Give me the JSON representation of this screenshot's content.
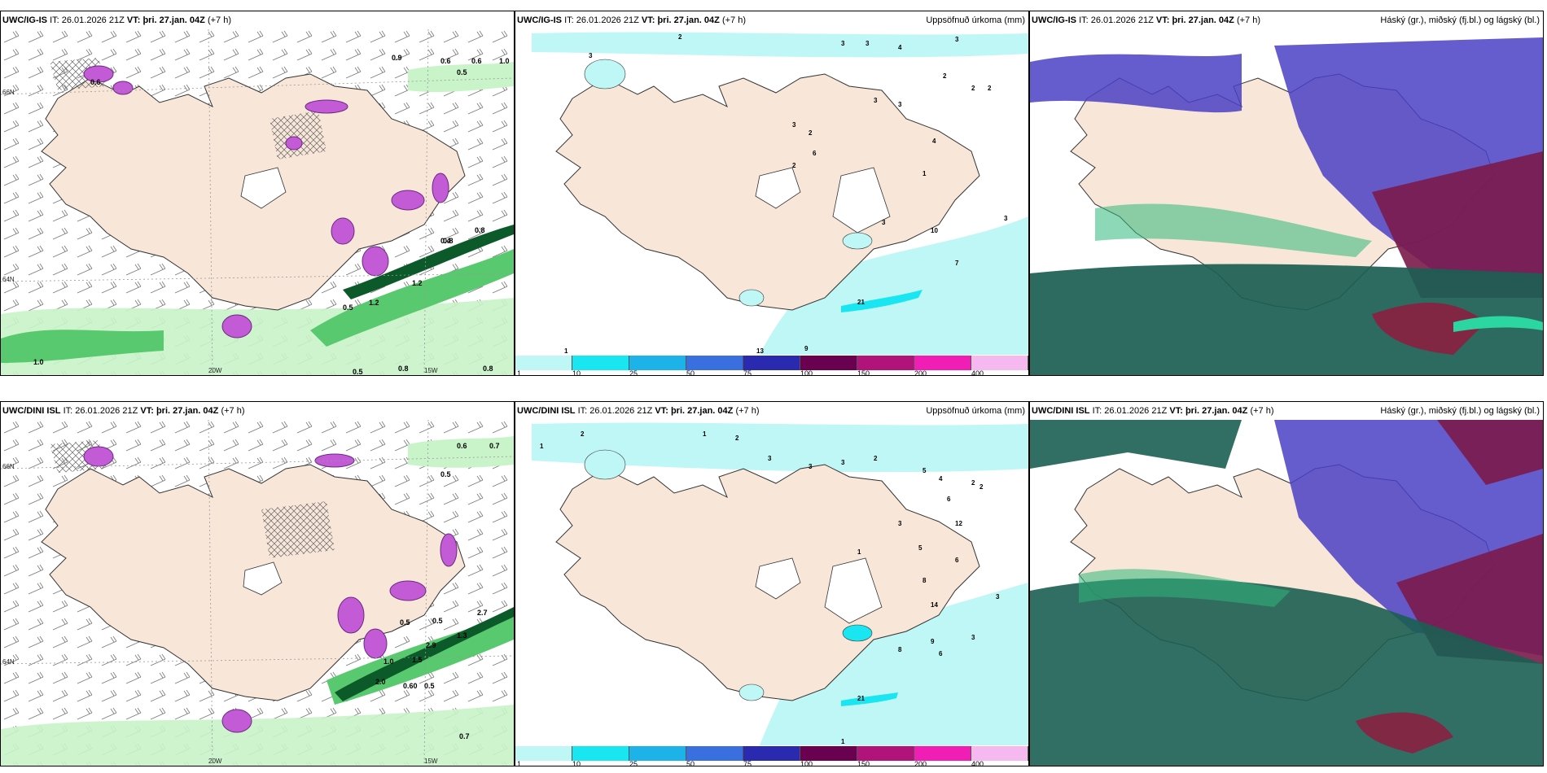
{
  "panels": {
    "p1": {
      "model": "UWC/IG-IS",
      "it_label": "IT:",
      "it": "26.01.2026 21Z",
      "vt_label": "VT: þri. 27.jan. 04Z",
      "lead": "(+7 h)",
      "right": ""
    },
    "p2": {
      "model": "UWC/IG-IS",
      "it_label": "IT:",
      "it": "26.01.2026 21Z",
      "vt_label": "VT: þri. 27.jan. 04Z",
      "lead": "(+7 h)",
      "right": "Uppsöfnuð úrkoma (mm)"
    },
    "p3": {
      "model": "UWC/IG-IS",
      "it_label": "IT:",
      "it": "26.01.2026 21Z",
      "vt_label": "VT: þri. 27.jan. 04Z",
      "lead": "(+7 h)",
      "right": "Háský (gr.), miðský (fj.bl.) og lágský (bl.)"
    },
    "p4": {
      "model": "UWC/DINI ISL",
      "it_label": "IT:",
      "it": "26.01.2026 21Z",
      "vt_label": "VT: þri. 27.jan. 04Z",
      "lead": "(+7 h)",
      "right": ""
    },
    "p5": {
      "model": "UWC/DINI ISL",
      "it_label": "IT:",
      "it": "26.01.2026 21Z",
      "vt_label": "VT: þri. 27.jan. 04Z",
      "lead": "(+7 h)",
      "right": "Uppsöfnuð úrkoma (mm)"
    },
    "p6": {
      "model": "UWC/DINI ISL",
      "it_label": "IT:",
      "it": "26.01.2026 21Z",
      "vt_label": "VT: þri. 27.jan. 04Z",
      "lead": "(+7 h)",
      "right": "Háský (gr.), miðský (fj.bl.) og lágský (bl.)"
    }
  },
  "axes": {
    "lon20": "20W",
    "lon15": "15W",
    "lat66": "66N",
    "lat64": "64N",
    "lat64b": "64N",
    "lat66r": "66N",
    "lat64r": "64N"
  },
  "colorbar": {
    "ticks": [
      "1",
      "10",
      "25",
      "50",
      "75",
      "100",
      "150",
      "200",
      "400"
    ],
    "colors": [
      "#bff6f6",
      "#19e6f0",
      "#1eb3e8",
      "#3a6fe0",
      "#2a2ab0",
      "#6a0050",
      "#b0147a",
      "#f01eb4",
      "#f5b9f0"
    ]
  },
  "legend_colors": {
    "land": "#f8e7d8",
    "precip_light": "#bff5f5",
    "snow_low": "#c9f3c9",
    "snow_mid": "#58c96e",
    "snow_dark": "#0c5a2a",
    "conv": "#c35bd6"
  },
  "panel1_values": [
    "0.9",
    "0.6",
    "0.6",
    "0.5",
    "1.0",
    "0.8",
    "0.4",
    "0.8",
    "0.5",
    "1.2",
    "1.2",
    "0.5",
    "1.0",
    "0.8",
    "0.6",
    "0.8"
  ],
  "panel2_values": [
    "3",
    "2",
    "3",
    "3",
    "4",
    "3",
    "2",
    "2",
    "2",
    "3",
    "3",
    "3",
    "2",
    "6",
    "2",
    "1",
    "4",
    "3",
    "10",
    "7",
    "3",
    "21",
    "13",
    "9",
    "1"
  ],
  "panel4_values": [
    "0.6",
    "0.5",
    "0.7",
    "0.5",
    "0.5",
    "1.3",
    "2.7",
    "2.9",
    "2.0",
    "0.60",
    "0.5",
    "0.7",
    "1.5",
    "1.0"
  ],
  "panel5_values": [
    "2",
    "1",
    "1",
    "2",
    "3",
    "3",
    "3",
    "2",
    "5",
    "4",
    "6",
    "2",
    "12",
    "2",
    "1",
    "3",
    "5",
    "6",
    "8",
    "14",
    "9",
    "6",
    "3",
    "21",
    "8",
    "1",
    "3"
  ]
}
